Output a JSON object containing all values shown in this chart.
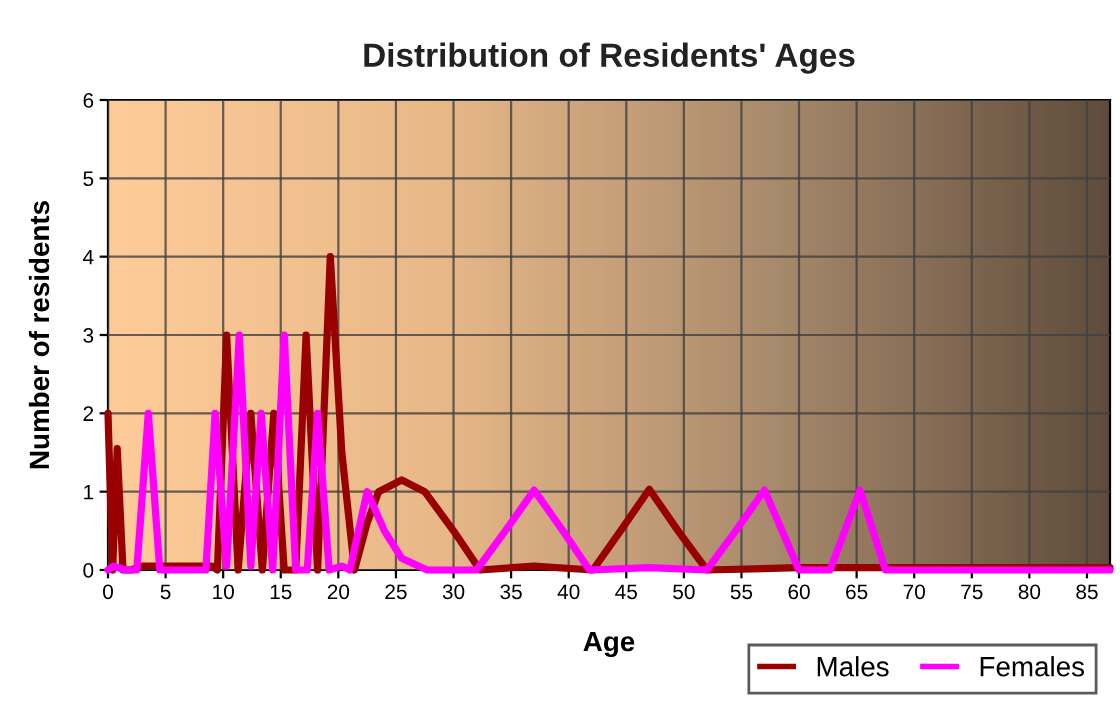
{
  "chart_data": {
    "type": "line",
    "title": "Distribution of Residents' Ages",
    "xlabel": "Age",
    "ylabel": "Number of residents",
    "xlim": [
      0,
      87
    ],
    "xticks": [
      0,
      5,
      10,
      15,
      20,
      25,
      30,
      35,
      40,
      45,
      50,
      55,
      60,
      65,
      70,
      75,
      80,
      85
    ],
    "ylim": [
      0,
      6
    ],
    "yticks": [
      0,
      1,
      2,
      3,
      4,
      5,
      6
    ],
    "grid": true,
    "legend": "bottom right",
    "line_style": "solid",
    "marker": "none",
    "series": [
      {
        "name": "Males",
        "color": "#990000",
        "x": [
          0,
          0.4,
          0.8,
          1.3,
          2,
          3,
          9,
          9.5,
          10.3,
          11.3,
          12.4,
          13.4,
          14.4,
          15.3,
          16.3,
          17.2,
          18.2,
          19.3,
          20.3,
          21.4,
          22.5,
          23.5,
          25.5,
          27.5,
          30,
          32.3,
          37,
          42.1,
          44.5,
          47,
          49.5,
          52,
          60,
          87
        ],
        "values": [
          2,
          0,
          1.55,
          0,
          0,
          0.05,
          0.05,
          0,
          3,
          0,
          2,
          0,
          2,
          0,
          0,
          3,
          0,
          4,
          1.5,
          0,
          0.6,
          1,
          1.15,
          1,
          0.5,
          0,
          0.05,
          0,
          0.5,
          1.03,
          0.5,
          0,
          0.03,
          0.03
        ]
      },
      {
        "name": "Females",
        "color": "#ff00ff",
        "x": [
          0,
          0.5,
          1.5,
          2.5,
          3.5,
          4.5,
          8.5,
          9.3,
          10.3,
          11.4,
          12.4,
          13.3,
          14.3,
          15.3,
          16.3,
          17.3,
          18.2,
          19.2,
          20.3,
          21,
          22.5,
          24,
          25.5,
          27.7,
          32,
          34.5,
          37,
          39.5,
          41.8,
          47,
          52,
          54.5,
          57,
          60,
          62.7,
          65.3,
          67.5,
          87
        ],
        "values": [
          0,
          0.05,
          0,
          0,
          2,
          0,
          0,
          2,
          0.05,
          3,
          0.05,
          2,
          0,
          3,
          0,
          0,
          2,
          0,
          0.05,
          0,
          1,
          0.5,
          0.15,
          0,
          0,
          0.5,
          1.02,
          0.5,
          0,
          0.03,
          0,
          0.5,
          1.02,
          0,
          0,
          1.02,
          0,
          0
        ]
      }
    ]
  }
}
